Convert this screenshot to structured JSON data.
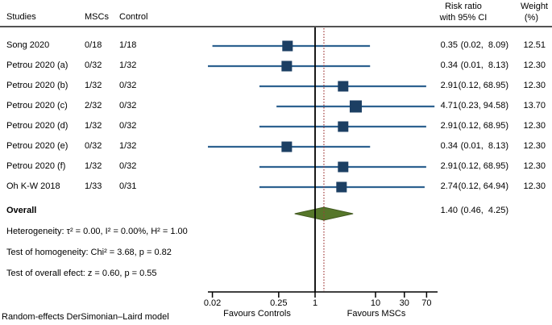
{
  "colors": {
    "ci_line": "#2e6290",
    "marker": "#1c3f63",
    "diamond_fill": "#56772a",
    "diamond_stroke": "#41591f",
    "null_line": "#000000",
    "overall_ref_line": "#a03a3a",
    "axis": "#000000",
    "header_rule": "#1a1a1a",
    "text": "#000000"
  },
  "table_header": {
    "studies": "Studies",
    "mscs": "MSCs",
    "control": "Control",
    "risk_ratio_line1": "Risk ratio",
    "risk_ratio_line2": "with 95% CI",
    "weight_line1": "Weight",
    "weight_line2": "(%)"
  },
  "chart_data": {
    "type": "forest",
    "x_scale": "log10",
    "axis_ticks": [
      "0.02",
      "0.25",
      "1",
      "10",
      "30",
      "70"
    ],
    "axis_range": [
      0.02,
      75
    ],
    "null_value": 1,
    "overall_ref_value": 1.4,
    "xlabel_left": "Favours Controls",
    "xlabel_right": "Favours MSCs",
    "studies": [
      {
        "name": "Song 2020",
        "mscs": "0/18",
        "control": "1/18",
        "rr": 0.35,
        "ci_low": 0.02,
        "ci_high": 8.09,
        "rr_text": "0.35",
        "ci_text": "(0.02,  8.09)",
        "weight": "12.51"
      },
      {
        "name": "Petrou 2020 (a)",
        "mscs": "0/32",
        "control": "1/32",
        "rr": 0.34,
        "ci_low": 0.01,
        "ci_high": 8.13,
        "rr_text": "0.34",
        "ci_text": "(0.01,  8.13)",
        "weight": "12.30"
      },
      {
        "name": "Petrou 2020 (b)",
        "mscs": "1/32",
        "control": "0/32",
        "rr": 2.91,
        "ci_low": 0.12,
        "ci_high": 68.95,
        "rr_text": "2.91",
        "ci_text": "(0.12, 68.95)",
        "weight": "12.30"
      },
      {
        "name": "Petrou 2020 (c)",
        "mscs": "2/32",
        "control": "0/32",
        "rr": 4.71,
        "ci_low": 0.23,
        "ci_high": 94.58,
        "rr_text": "4.71",
        "ci_text": "(0.23, 94.58)",
        "weight": "13.70"
      },
      {
        "name": "Petrou 2020 (d)",
        "mscs": "1/32",
        "control": "0/32",
        "rr": 2.91,
        "ci_low": 0.12,
        "ci_high": 68.95,
        "rr_text": "2.91",
        "ci_text": "(0.12, 68.95)",
        "weight": "12.30"
      },
      {
        "name": "Petrou 2020 (e)",
        "mscs": "0/32",
        "control": "1/32",
        "rr": 0.34,
        "ci_low": 0.01,
        "ci_high": 8.13,
        "rr_text": "0.34",
        "ci_text": "(0.01,  8.13)",
        "weight": "12.30"
      },
      {
        "name": "Petrou 2020 (f)",
        "mscs": "1/32",
        "control": "0/32",
        "rr": 2.91,
        "ci_low": 0.12,
        "ci_high": 68.95,
        "rr_text": "2.91",
        "ci_text": "(0.12, 68.95)",
        "weight": "12.30"
      },
      {
        "name": "Oh K-W 2018",
        "mscs": "1/33",
        "control": "0/31",
        "rr": 2.74,
        "ci_low": 0.12,
        "ci_high": 64.94,
        "rr_text": "2.74",
        "ci_text": "(0.12, 64.94)",
        "weight": "12.30"
      }
    ],
    "overall": {
      "label": "Overall",
      "rr": 1.4,
      "ci_low": 0.46,
      "ci_high": 4.25,
      "rr_text": "1.40",
      "ci_text": "(0.46,  4.25)"
    },
    "stats": [
      "Heterogeneity: τ² = 0.00, I² = 0.00%, H² = 1.00",
      "Test of homogeneity: Chi² = 3.68, p = 0.82",
      "Test of overall efect: z = 0.60, p = 0.55"
    ]
  },
  "footer": {
    "model_note": "Random-effects DerSimonian–Laird model"
  }
}
